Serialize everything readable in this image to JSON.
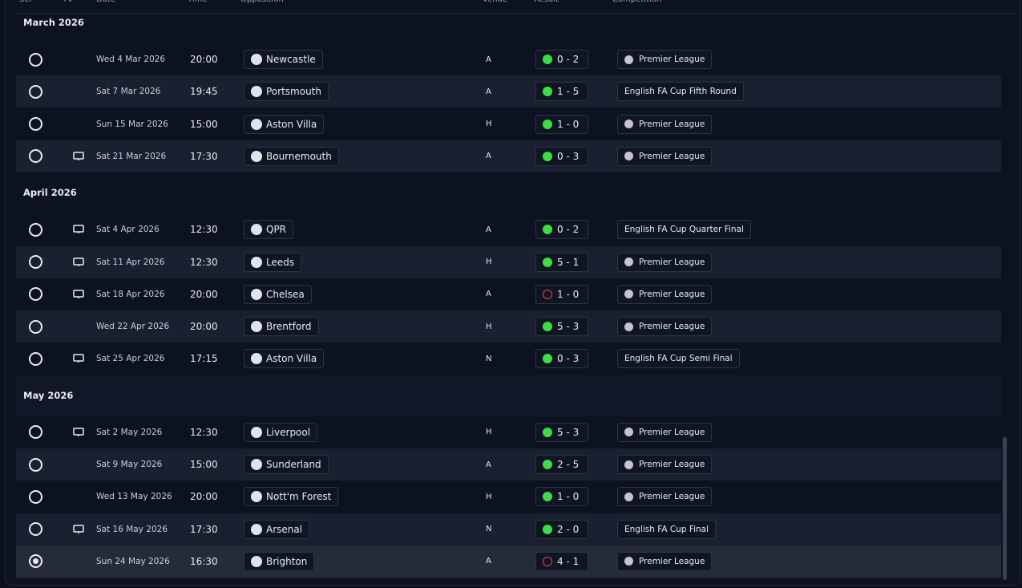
{
  "header": {
    "columns": [
      "Sel",
      "TV",
      "Date",
      "Time",
      "Opposition",
      "Venue",
      "Result",
      "Competition"
    ]
  },
  "months": [
    {
      "title": "March 2026",
      "fixtures": [
        {
          "tv": false,
          "date": "Wed 4 Mar 2026",
          "time": "20:00",
          "opposition": "Newcastle",
          "venue": "A",
          "result": "0 - 2",
          "result_color": "#3fdc45",
          "competition": "Premier League",
          "competition_icon": true,
          "selected": false
        },
        {
          "tv": false,
          "date": "Sat 7 Mar 2026",
          "time": "19:45",
          "opposition": "Portsmouth",
          "venue": "A",
          "result": "1 - 5",
          "result_color": "#3fdc45",
          "competition": "English FA Cup Fifth Round",
          "competition_icon": false,
          "selected": false
        },
        {
          "tv": false,
          "date": "Sun 15 Mar 2026",
          "time": "15:00",
          "opposition": "Aston Villa",
          "venue": "H",
          "result": "1 - 0",
          "result_color": "#3fdc45",
          "competition": "Premier League",
          "competition_icon": true,
          "selected": false
        },
        {
          "tv": true,
          "date": "Sat 21 Mar 2026",
          "time": "17:30",
          "opposition": "Bournemouth",
          "venue": "A",
          "result": "0 - 3",
          "result_color": "#3fdc45",
          "competition": "Premier League",
          "competition_icon": true,
          "selected": false
        }
      ]
    },
    {
      "title": "April 2026",
      "fixtures": [
        {
          "tv": true,
          "date": "Sat 4 Apr 2026",
          "time": "12:30",
          "opposition": "QPR",
          "venue": "A",
          "result": "0 - 2",
          "result_color": "#3fdc45",
          "competition": "English FA Cup Quarter Final",
          "competition_icon": false,
          "selected": false
        },
        {
          "tv": true,
          "date": "Sat 11 Apr 2026",
          "time": "12:30",
          "opposition": "Leeds",
          "venue": "H",
          "result": "5 - 1",
          "result_color": "#3fdc45",
          "competition": "Premier League",
          "competition_icon": true,
          "selected": false
        },
        {
          "tv": true,
          "date": "Sat 18 Apr 2026",
          "time": "20:00",
          "opposition": "Chelsea",
          "venue": "A",
          "result": "1 - 0",
          "result_color": "#e5484d",
          "competition": "Premier League",
          "competition_icon": true,
          "selected": false
        },
        {
          "tv": false,
          "date": "Wed 22 Apr 2026",
          "time": "20:00",
          "opposition": "Brentford",
          "venue": "H",
          "result": "5 - 3",
          "result_color": "#3fdc45",
          "competition": "Premier League",
          "competition_icon": true,
          "selected": false
        },
        {
          "tv": true,
          "date": "Sat 25 Apr 2026",
          "time": "17:15",
          "opposition": "Aston Villa",
          "venue": "N",
          "result": "0 - 3",
          "result_color": "#3fdc45",
          "competition": "English FA Cup Semi Final",
          "competition_icon": false,
          "selected": false
        }
      ]
    },
    {
      "title": "May 2026",
      "fixtures": [
        {
          "tv": true,
          "date": "Sat 2 May 2026",
          "time": "12:30",
          "opposition": "Liverpool",
          "venue": "H",
          "result": "5 - 3",
          "result_color": "#3fdc45",
          "competition": "Premier League",
          "competition_icon": true,
          "selected": false
        },
        {
          "tv": false,
          "date": "Sat 9 May 2026",
          "time": "15:00",
          "opposition": "Sunderland",
          "venue": "A",
          "result": "2 - 5",
          "result_color": "#3fdc45",
          "competition": "Premier League",
          "competition_icon": true,
          "selected": false
        },
        {
          "tv": false,
          "date": "Wed 13 May 2026",
          "time": "20:00",
          "opposition": "Nott'm Forest",
          "venue": "H",
          "result": "1 - 0",
          "result_color": "#3fdc45",
          "competition": "Premier League",
          "competition_icon": true,
          "selected": false
        },
        {
          "tv": true,
          "date": "Sat 16 May 2026",
          "time": "17:30",
          "opposition": "Arsenal",
          "venue": "N",
          "result": "2 - 0",
          "result_color": "#3fdc45",
          "competition": "English FA Cup Final",
          "competition_icon": false,
          "selected": false
        },
        {
          "tv": false,
          "date": "Sun 24 May 2026",
          "time": "16:30",
          "opposition": "Brighton",
          "venue": "A",
          "result": "4 - 1",
          "result_color": "#e5484d",
          "competition": "Premier League",
          "competition_icon": true,
          "selected": true
        }
      ]
    }
  ]
}
